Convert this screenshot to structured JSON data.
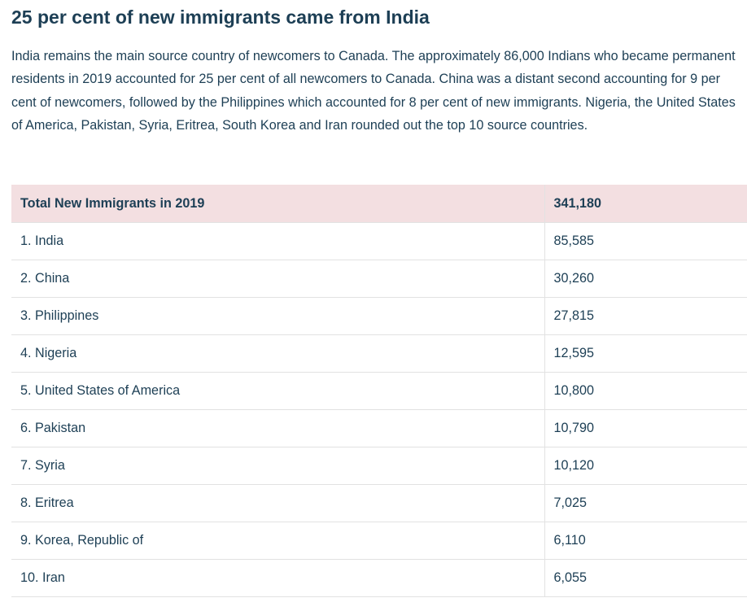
{
  "article": {
    "title": "25 per cent of new immigrants came from India",
    "paragraph": "India remains the main source country of newcomers to Canada. The approximately 86,000 Indians who became permanent residents in 2019 accounted for 25 per cent of all newcomers to Canada. China was a distant second accounting for 9 per cent of newcomers, followed by the Philippines which accounted for 8 per cent of new immigrants. Nigeria, the United States of America, Pakistan, Syria, Eritrea, South Korea and Iran rounded out the top 10 source countries."
  },
  "table": {
    "header": {
      "label": "Total New Immigrants in 2019",
      "value": "341,180"
    },
    "rows": [
      {
        "label": "1. India",
        "value": "85,585"
      },
      {
        "label": "2. China",
        "value": "30,260"
      },
      {
        "label": "3. Philippines",
        "value": "27,815"
      },
      {
        "label": "4. Nigeria",
        "value": "12,595"
      },
      {
        "label": "5. United States of America",
        "value": "10,800"
      },
      {
        "label": "6. Pakistan",
        "value": "10,790"
      },
      {
        "label": "7. Syria",
        "value": "10,120"
      },
      {
        "label": "8. Eritrea",
        "value": "7,025"
      },
      {
        "label": "9. Korea, Republic of",
        "value": "6,110"
      },
      {
        "label": "10. Iran",
        "value": "6,055"
      }
    ]
  },
  "colors": {
    "text": "#1d3f55",
    "header_background": "#f3dfe1",
    "border": "#e2e2e2"
  }
}
